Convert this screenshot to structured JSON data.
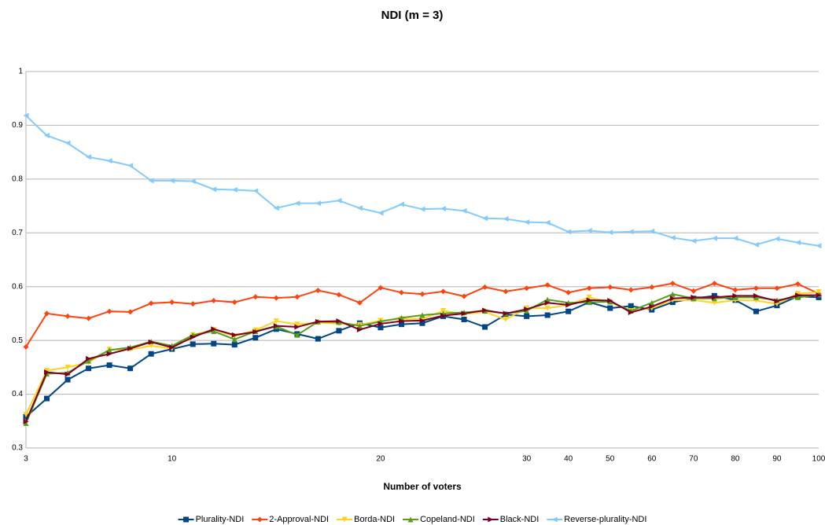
{
  "chart_data": {
    "type": "line",
    "title": "NDI (m = 3)",
    "x_label": "Number of voters",
    "categories": [
      "3",
      null,
      null,
      null,
      null,
      null,
      null,
      "10",
      null,
      null,
      null,
      null,
      null,
      null,
      null,
      null,
      null,
      "20",
      null,
      null,
      null,
      null,
      null,
      null,
      "30",
      null,
      "40",
      null,
      "50",
      null,
      "60",
      null,
      "70",
      null,
      "80",
      null,
      "90",
      null,
      "100"
    ],
    "ylim": [
      0.3,
      1
    ],
    "yticks": [
      0.3,
      0.4,
      0.5,
      0.6,
      0.7,
      0.8,
      0.9,
      1
    ],
    "grid": true,
    "legend": "bottom",
    "series": [
      {
        "name": "Plurality-NDI",
        "color": "#004586",
        "marker": "square",
        "values": [
          0.358,
          0.392,
          0.427,
          0.448,
          0.454,
          0.448,
          0.475,
          0.484,
          0.493,
          0.494,
          0.492,
          0.505,
          0.521,
          0.512,
          0.503,
          0.518,
          0.532,
          0.524,
          0.53,
          0.532,
          0.545,
          0.539,
          0.525,
          0.548,
          0.545,
          0.547,
          0.554,
          0.571,
          0.56,
          0.564,
          0.557,
          0.571,
          0.578,
          0.583,
          0.575,
          0.554,
          0.565,
          0.582,
          0.58
        ]
      },
      {
        "name": "2-Approval-NDI",
        "color": "#ff420e",
        "marker": "diamond",
        "values": [
          0.488,
          0.55,
          0.545,
          0.541,
          0.554,
          0.553,
          0.569,
          0.571,
          0.568,
          0.574,
          0.571,
          0.581,
          0.579,
          0.581,
          0.593,
          0.585,
          0.57,
          0.598,
          0.589,
          0.586,
          0.591,
          0.582,
          0.599,
          0.591,
          0.597,
          0.603,
          0.589,
          0.597,
          0.599,
          0.594,
          0.599,
          0.606,
          0.592,
          0.606,
          0.594,
          0.597,
          0.597,
          0.605,
          0.587
        ]
      },
      {
        "name": "Borda-NDI",
        "color": "#ffd320",
        "marker": "triangle-down",
        "values": [
          0.362,
          0.444,
          0.45,
          0.459,
          0.483,
          0.483,
          0.49,
          0.485,
          0.51,
          0.52,
          0.508,
          0.519,
          0.536,
          0.53,
          0.533,
          0.531,
          0.529,
          0.537,
          0.54,
          0.54,
          0.555,
          0.549,
          0.553,
          0.539,
          0.56,
          0.56,
          0.566,
          0.58,
          0.571,
          0.555,
          0.56,
          0.575,
          0.575,
          0.57,
          0.575,
          0.574,
          0.568,
          0.587,
          0.59
        ]
      },
      {
        "name": "Copeland-NDI",
        "color": "#579d1c",
        "marker": "triangle-up",
        "values": [
          0.346,
          0.438,
          0.44,
          0.462,
          0.482,
          0.487,
          0.498,
          0.49,
          0.51,
          0.517,
          0.502,
          0.517,
          0.526,
          0.51,
          0.535,
          0.534,
          0.527,
          0.535,
          0.542,
          0.547,
          0.55,
          0.552,
          0.555,
          0.55,
          0.555,
          0.576,
          0.57,
          0.571,
          0.572,
          0.555,
          0.57,
          0.586,
          0.578,
          0.578,
          0.58,
          0.58,
          0.575,
          0.58,
          0.585
        ]
      },
      {
        "name": "Black-NDI",
        "color": "#7e0021",
        "marker": "triangle-right",
        "values": [
          0.349,
          0.441,
          0.437,
          0.466,
          0.475,
          0.485,
          0.497,
          0.487,
          0.506,
          0.521,
          0.51,
          0.516,
          0.527,
          0.525,
          0.535,
          0.536,
          0.52,
          0.531,
          0.536,
          0.537,
          0.546,
          0.55,
          0.556,
          0.55,
          0.558,
          0.57,
          0.566,
          0.575,
          0.574,
          0.552,
          0.563,
          0.578,
          0.58,
          0.58,
          0.583,
          0.583,
          0.573,
          0.584,
          0.584
        ]
      },
      {
        "name": "Reverse-plurality-NDI",
        "color": "#83caff",
        "marker": "triangle-left",
        "values": [
          0.918,
          0.881,
          0.867,
          0.841,
          0.834,
          0.825,
          0.797,
          0.797,
          0.796,
          0.781,
          0.78,
          0.778,
          0.746,
          0.755,
          0.755,
          0.76,
          0.746,
          0.737,
          0.753,
          0.744,
          0.745,
          0.741,
          0.727,
          0.726,
          0.72,
          0.719,
          0.702,
          0.704,
          0.701,
          0.702,
          0.703,
          0.691,
          0.685,
          0.69,
          0.69,
          0.678,
          0.689,
          0.682,
          0.676
        ]
      }
    ]
  }
}
